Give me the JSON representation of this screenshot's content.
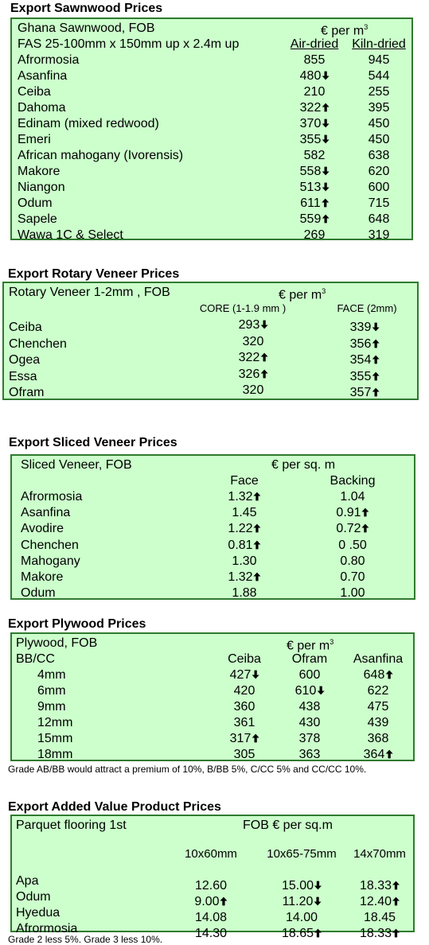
{
  "sawnwood": {
    "title": "Export Sawnwood Prices",
    "label": "Ghana Sawnwood, FOB",
    "unit": "€ per m",
    "unit_sup": "3",
    "spec": "FAS 25-100mm x 150mm up x 2.4m up",
    "col1": "Air-dried",
    "col2": "Kiln-dried",
    "rows": [
      {
        "name": "Afrormosia",
        "a": "855",
        "a_arrow": "",
        "k": "945",
        "k_arrow": ""
      },
      {
        "name": "Asanfina",
        "a": "480",
        "a_arrow": "down",
        "k": "544",
        "k_arrow": ""
      },
      {
        "name": "Ceiba",
        "a": "210",
        "a_arrow": "",
        "k": "255",
        "k_arrow": ""
      },
      {
        "name": "Dahoma",
        "a": "322",
        "a_arrow": "up",
        "k": "395",
        "k_arrow": ""
      },
      {
        "name": "Edinam (mixed redwood)",
        "a": "370",
        "a_arrow": "down",
        "k": "450",
        "k_arrow": ""
      },
      {
        "name": "Emeri",
        "a": "355",
        "a_arrow": "down",
        "k": "450",
        "k_arrow": ""
      },
      {
        "name": "African mahogany (Ivorensis)",
        "a": "582",
        "a_arrow": "",
        "k": "638",
        "k_arrow": ""
      },
      {
        "name": "Makore",
        "a": "558",
        "a_arrow": "down",
        "k": "620",
        "k_arrow": ""
      },
      {
        "name": "Niangon",
        "a": "513",
        "a_arrow": "down",
        "k": "600",
        "k_arrow": ""
      },
      {
        "name": "Odum",
        "a": "611",
        "a_arrow": "up",
        "k": "715",
        "k_arrow": ""
      },
      {
        "name": "Sapele",
        "a": "559",
        "a_arrow": "up",
        "k": "648",
        "k_arrow": ""
      },
      {
        "name": "Wawa 1C & Select",
        "a": "269",
        "a_arrow": "",
        "k": "319",
        "k_arrow": ""
      }
    ]
  },
  "rotary": {
    "title": "Export Rotary Veneer Prices",
    "label": "Rotary Veneer 1-2mm , FOB",
    "unit": "€  per m",
    "unit_sup": "3",
    "col1": "CORE (1-1.9 mm )",
    "col2": "FACE (2mm)",
    "rows": [
      {
        "name": "Ceiba",
        "a": "293",
        "a_arrow": "down",
        "k": "339",
        "k_arrow": "down"
      },
      {
        "name": "Chenchen",
        "a": "320",
        "a_arrow": "",
        "k": "356",
        "k_arrow": "up"
      },
      {
        "name": "Ogea",
        "a": "322",
        "a_arrow": "up",
        "k": "354",
        "k_arrow": "up"
      },
      {
        "name": "Essa",
        "a": "326",
        "a_arrow": "up",
        "k": "355",
        "k_arrow": "up"
      },
      {
        "name": "Ofram",
        "a": "320",
        "a_arrow": "",
        "k": "357",
        "k_arrow": "up"
      }
    ]
  },
  "sliced": {
    "title": "Export Sliced Veneer Prices",
    "label": "Sliced Veneer, FOB",
    "unit": "€ per sq. m",
    "col1": "Face",
    "col2": "Backing",
    "rows": [
      {
        "name": "Afrormosia",
        "a": "1.32",
        "a_arrow": "up",
        "k": "1.04",
        "k_arrow": ""
      },
      {
        "name": "Asanfina",
        "a": "1.45",
        "a_arrow": "",
        "k": "0.91",
        "k_arrow": "up"
      },
      {
        "name": "Avodire",
        "a": "1.22",
        "a_arrow": "up",
        "k": "0.72",
        "k_arrow": "up"
      },
      {
        "name": "Chenchen",
        "a": "0.81",
        "a_arrow": "up",
        "k": "0 .50",
        "k_arrow": ""
      },
      {
        "name": "Mahogany",
        "a": "1.30",
        "a_arrow": "",
        "k": "0.80",
        "k_arrow": ""
      },
      {
        "name": "Makore",
        "a": "1.32",
        "a_arrow": "up",
        "k": "0.70",
        "k_arrow": ""
      },
      {
        "name": "Odum",
        "a": "1.88",
        "a_arrow": "",
        "k": "1.00",
        "k_arrow": ""
      }
    ]
  },
  "plywood": {
    "title": "Export Plywood Prices",
    "label": "Plywood, FOB",
    "unit": "€ per m",
    "unit_sup": "3",
    "sub": "BB/CC",
    "cols": [
      "Ceiba",
      "Ofram",
      "Asanfina"
    ],
    "rows": [
      {
        "name": "4mm",
        "v": [
          {
            "t": "427",
            "a": "down"
          },
          {
            "t": "600",
            "a": ""
          },
          {
            "t": "648",
            "a": "up"
          }
        ]
      },
      {
        "name": "6mm",
        "v": [
          {
            "t": "420",
            "a": ""
          },
          {
            "t": "610",
            "a": "down"
          },
          {
            "t": "622",
            "a": ""
          }
        ]
      },
      {
        "name": "9mm",
        "v": [
          {
            "t": "360",
            "a": ""
          },
          {
            "t": "438",
            "a": ""
          },
          {
            "t": "475",
            "a": ""
          }
        ]
      },
      {
        "name": "12mm",
        "v": [
          {
            "t": "361",
            "a": ""
          },
          {
            "t": "430",
            "a": ""
          },
          {
            "t": "439",
            "a": ""
          }
        ]
      },
      {
        "name": "15mm",
        "v": [
          {
            "t": "317",
            "a": "up"
          },
          {
            "t": "378",
            "a": ""
          },
          {
            "t": "368",
            "a": ""
          }
        ]
      },
      {
        "name": "18mm",
        "v": [
          {
            "t": "305",
            "a": ""
          },
          {
            "t": "363",
            "a": ""
          },
          {
            "t": "364",
            "a": "up"
          }
        ]
      }
    ],
    "note": "Grade AB/BB would attract a premium of 10%, B/BB 5%, C/CC 5% and CC/CC 10%."
  },
  "added": {
    "title": "Export Added Value Product Prices",
    "label": "Parquet flooring 1st",
    "unit": "FOB € per sq.m",
    "cols": [
      "10x60mm",
      "10x65-75mm",
      "14x70mm"
    ],
    "rows": [
      {
        "name": "Apa",
        "v": [
          {
            "t": "12.60",
            "a": ""
          },
          {
            "t": "15.00",
            "a": "down"
          },
          {
            "t": "18.33",
            "a": "up"
          }
        ]
      },
      {
        "name": "Odum",
        "v": [
          {
            "t": "9.00",
            "a": "up"
          },
          {
            "t": "11.20",
            "a": "down"
          },
          {
            "t": "12.40",
            "a": "up"
          }
        ]
      },
      {
        "name": "Hyedua",
        "v": [
          {
            "t": "14.08",
            "a": ""
          },
          {
            "t": "14.00",
            "a": ""
          },
          {
            "t": "18.45",
            "a": ""
          }
        ]
      },
      {
        "name": "Afrormosia",
        "v": [
          {
            "t": "14.30",
            "a": ""
          },
          {
            "t": "18.65",
            "a": "up"
          },
          {
            "t": "18.33",
            "a": "up"
          }
        ]
      }
    ],
    "note": "Grade 2 less 5%. Grade 3 less 10%."
  }
}
